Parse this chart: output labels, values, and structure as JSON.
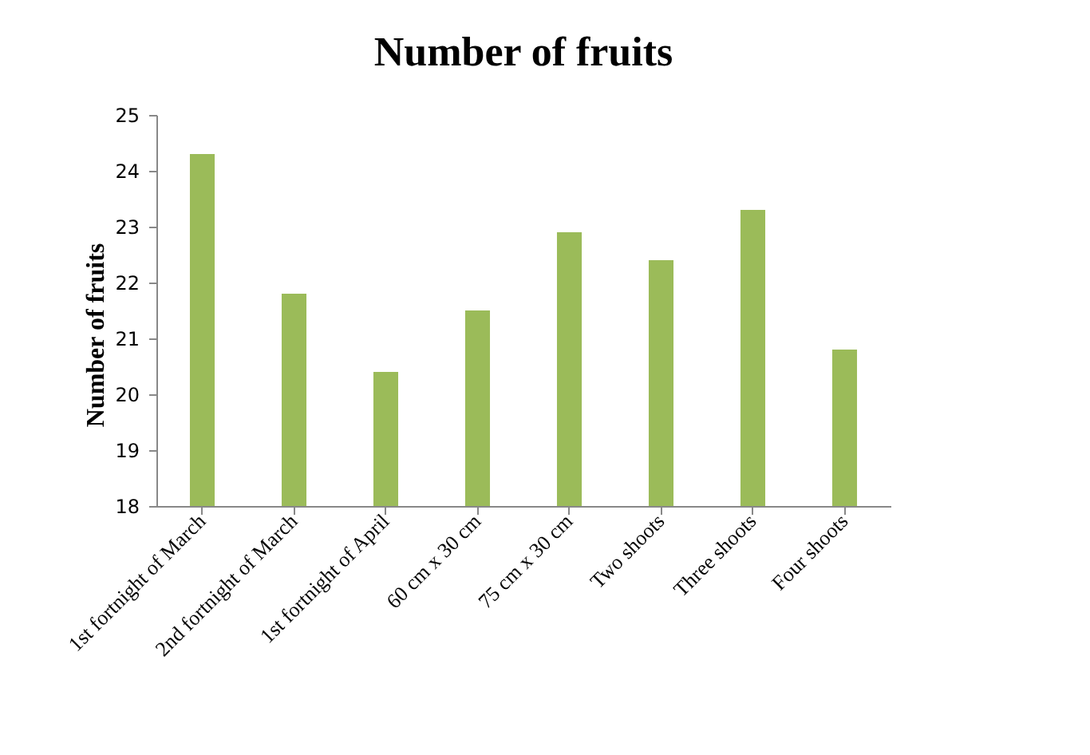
{
  "chart_data": {
    "type": "bar",
    "title": "Number of fruits",
    "ylabel": "Number of fruits",
    "categories": [
      "1st fortnight of March",
      "2nd fortnight of March",
      "1st fortnight of April",
      "60 cm x 30 cm",
      "75 cm x 30 cm",
      "Two  shoots",
      "Three shoots",
      "Four  shoots"
    ],
    "values": [
      24.3,
      21.8,
      20.4,
      21.5,
      22.9,
      22.4,
      23.3,
      20.8
    ],
    "color": "#9bbb59",
    "ylim": [
      18,
      25
    ],
    "yticks": [
      18,
      19,
      20,
      21,
      22,
      23,
      24,
      25
    ],
    "grid": false
  }
}
